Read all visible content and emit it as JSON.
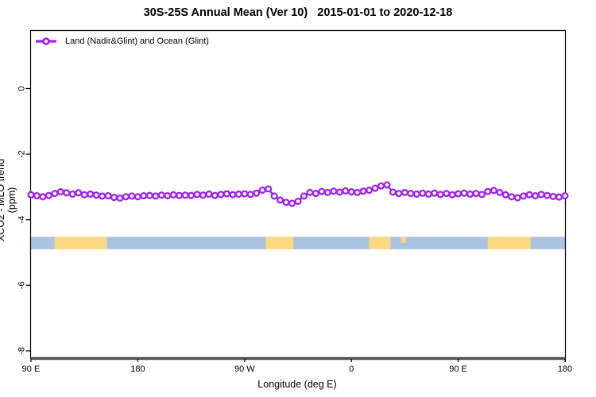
{
  "title": "30S-25S Annual Mean (Ver 10)   2015-01-01 to 2020-12-18",
  "legend": {
    "label": "Land (Nadir&Glint) and Ocean (Glint)"
  },
  "axes": {
    "x_label": "Longitude (deg E)",
    "y_label": "XCO2 - MLO trend (ppm)",
    "x_ticks": [
      {
        "label": "90 E",
        "deg": 0
      },
      {
        "label": "180",
        "deg": 90
      },
      {
        "label": "90 W",
        "deg": 180
      },
      {
        "label": "0",
        "deg": 270
      },
      {
        "label": "90 E",
        "deg": 360
      },
      {
        "label": "180",
        "deg": 450
      }
    ],
    "y_ticks": [
      {
        "label": "0",
        "value": 0
      },
      {
        "label": "-2",
        "value": -2
      },
      {
        "label": "-4",
        "value": -4
      },
      {
        "label": "-6",
        "value": -6
      },
      {
        "label": "-8",
        "value": -8
      }
    ]
  },
  "colors": {
    "series": "#a020f0",
    "ocean_band": "#aac3e1",
    "land_band": "#fbd780",
    "axis_baseline": "#4d4d4d",
    "frame": "#000000"
  },
  "chart_data": {
    "type": "line",
    "title": "30S-25S Annual Mean (Ver 10)   2015-01-01 to 2020-12-18",
    "xlabel": "Longitude (deg E)",
    "ylabel": "XCO2 - MLO trend (ppm)",
    "x_axis_note": "longitude wraps eastward starting at 90E; ticks 90E,180,90W,0,90E,180",
    "x_start": "90 E",
    "x_span_deg": 450,
    "ylim": [
      -8.3,
      1.8
    ],
    "grid": false,
    "legend_position": "top-left-inside",
    "series": [
      {
        "name": "Land (Nadir&Glint) and Ocean (Glint)",
        "color": "#a020f0",
        "marker": "open-circle",
        "x_deg_east_of_90E": [
          0,
          5,
          10,
          15,
          20,
          25,
          30,
          35,
          40,
          45,
          50,
          55,
          60,
          65,
          70,
          75,
          80,
          85,
          90,
          95,
          100,
          105,
          110,
          115,
          120,
          125,
          130,
          135,
          140,
          145,
          150,
          155,
          160,
          165,
          170,
          175,
          180,
          185,
          190,
          195,
          200,
          205,
          210,
          215,
          220,
          225,
          230,
          235,
          240,
          245,
          250,
          255,
          260,
          265,
          270,
          275,
          280,
          285,
          290,
          295,
          300,
          305,
          310,
          315,
          320,
          325,
          330,
          335,
          340,
          345,
          350,
          355,
          360,
          365,
          370,
          375,
          380,
          385,
          390,
          395,
          400,
          405,
          410,
          415,
          420,
          425,
          430,
          435,
          440,
          445,
          450
        ],
        "values_ppm": [
          -3.24,
          -3.27,
          -3.3,
          -3.26,
          -3.2,
          -3.15,
          -3.18,
          -3.22,
          -3.18,
          -3.24,
          -3.22,
          -3.25,
          -3.28,
          -3.27,
          -3.32,
          -3.34,
          -3.3,
          -3.28,
          -3.3,
          -3.27,
          -3.26,
          -3.28,
          -3.25,
          -3.27,
          -3.24,
          -3.26,
          -3.25,
          -3.26,
          -3.23,
          -3.25,
          -3.22,
          -3.26,
          -3.23,
          -3.21,
          -3.24,
          -3.22,
          -3.21,
          -3.23,
          -3.19,
          -3.1,
          -3.06,
          -3.28,
          -3.4,
          -3.47,
          -3.5,
          -3.44,
          -3.28,
          -3.17,
          -3.2,
          -3.14,
          -3.17,
          -3.13,
          -3.16,
          -3.12,
          -3.15,
          -3.17,
          -3.13,
          -3.1,
          -3.04,
          -2.97,
          -2.94,
          -3.16,
          -3.2,
          -3.17,
          -3.2,
          -3.22,
          -3.19,
          -3.22,
          -3.19,
          -3.23,
          -3.2,
          -3.24,
          -3.21,
          -3.19,
          -3.22,
          -3.2,
          -3.23,
          -3.14,
          -3.11,
          -3.17,
          -3.24,
          -3.3,
          -3.33,
          -3.28,
          -3.24,
          -3.27,
          -3.23,
          -3.26,
          -3.29,
          -3.31,
          -3.27
        ]
      }
    ],
    "surface_band": {
      "description": "horizontal strip showing land(yellow)/ocean(blue) along longitude",
      "value_top": -4.52,
      "value_bottom": -4.9,
      "colors": {
        "ocean": "#aac3e1",
        "land": "#fbd780"
      },
      "segments": [
        {
          "from": 0,
          "to": 20,
          "surface": "ocean"
        },
        {
          "from": 20,
          "to": 64,
          "surface": "land"
        },
        {
          "from": 64,
          "to": 198,
          "surface": "ocean"
        },
        {
          "from": 198,
          "to": 221,
          "surface": "land"
        },
        {
          "from": 221,
          "to": 285,
          "surface": "ocean"
        },
        {
          "from": 285,
          "to": 303,
          "surface": "land"
        },
        {
          "from": 303,
          "to": 385,
          "surface": "ocean"
        },
        {
          "from": 312,
          "to": 316,
          "surface": "land",
          "extent": "top-half"
        },
        {
          "from": 385,
          "to": 421,
          "surface": "land"
        },
        {
          "from": 421,
          "to": 450,
          "surface": "ocean"
        }
      ]
    }
  }
}
